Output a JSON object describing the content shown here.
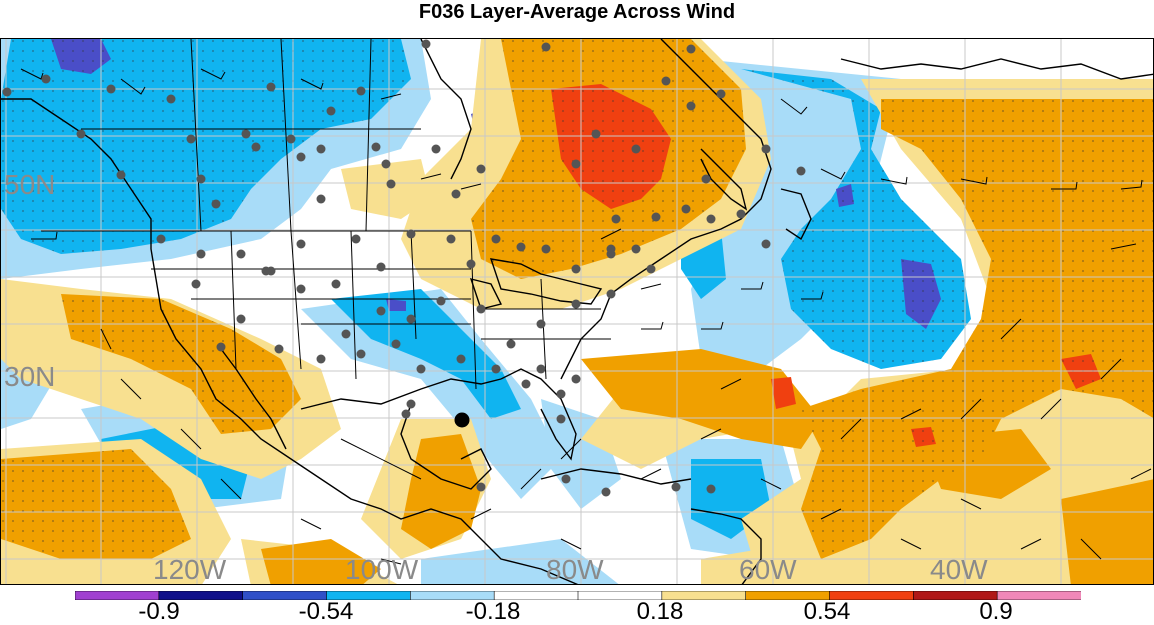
{
  "title": "F036 Layer-Average Across Wind",
  "lat_labels": [
    "50N",
    "30N"
  ],
  "lon_labels": [
    "120W",
    "100W",
    "80W",
    "60W",
    "40W"
  ],
  "colorbar": {
    "labels": [
      "-0.9",
      "-0.54",
      "-0.18",
      "0.18",
      "0.54",
      "0.9"
    ],
    "colors": [
      "#a040d0",
      "#10108a",
      "#3050c8",
      "#10b4f0",
      "#a8dcf8",
      "#ffffff",
      "#ffffff",
      "#f8e090",
      "#f0a000",
      "#f04010",
      "#b01818",
      "#f088b8"
    ]
  },
  "field_colors": {
    "strong_negative": "#4a4ec8",
    "negative": "#10b4f0",
    "weak_negative": "#a8dcf8",
    "weak_positive": "#f8e090",
    "positive": "#f0a000",
    "strong_positive": "#f04010"
  },
  "marker": {
    "station_dot_color": "#555555",
    "highlight_dot_color": "#000000"
  }
}
